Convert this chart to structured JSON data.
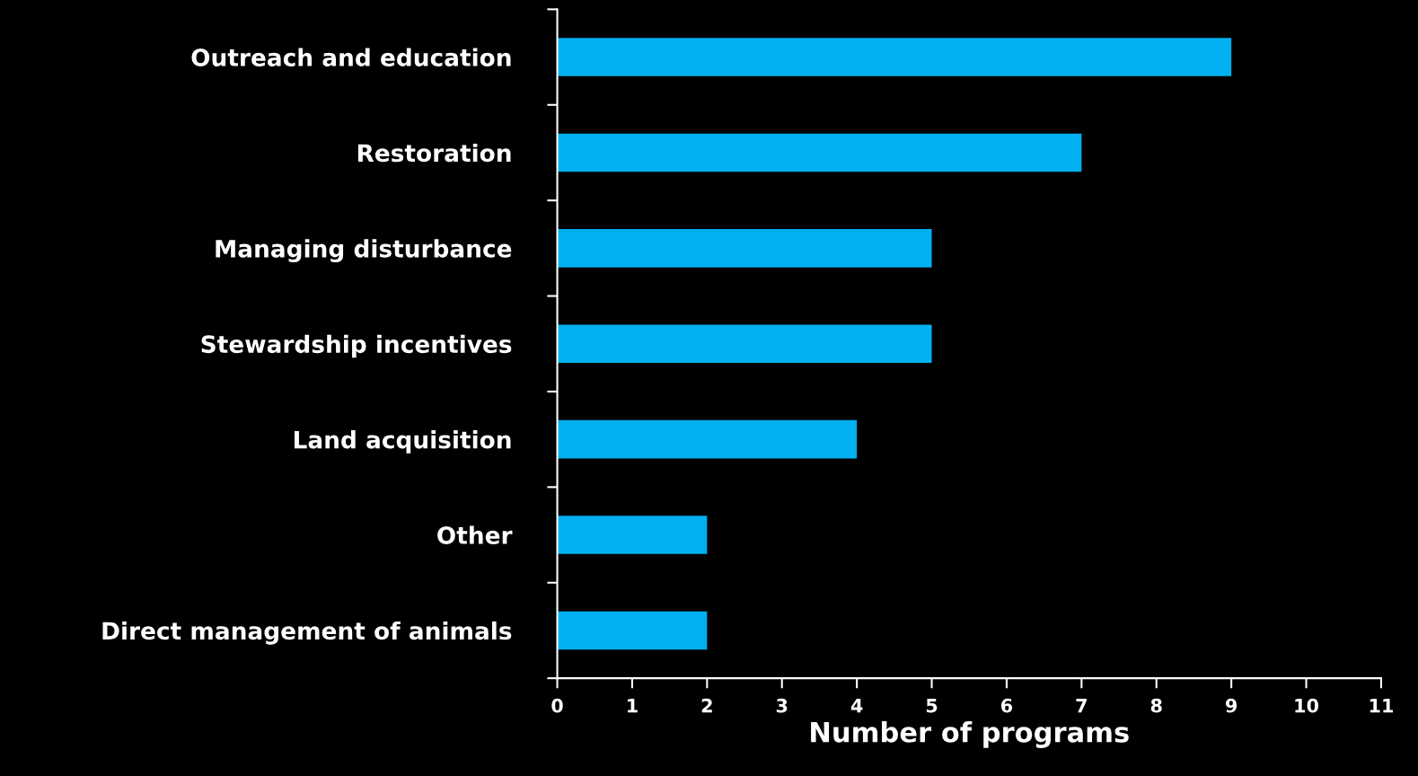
{
  "chart_data": {
    "type": "bar",
    "orientation": "horizontal",
    "xlabel": "Number of programs",
    "categories": [
      "Outreach and education",
      "Restoration",
      "Managing disturbance",
      "Stewardship incentives",
      "Land acquisition",
      "Other",
      "Direct management of animals"
    ],
    "values": [
      9,
      7,
      5,
      5,
      4,
      2,
      2
    ],
    "color": "#00b0f0",
    "xlim": [
      0,
      11
    ],
    "xticks": [
      0,
      1,
      2,
      3,
      4,
      5,
      6,
      7,
      8,
      9,
      10,
      11
    ],
    "grid": false
  }
}
